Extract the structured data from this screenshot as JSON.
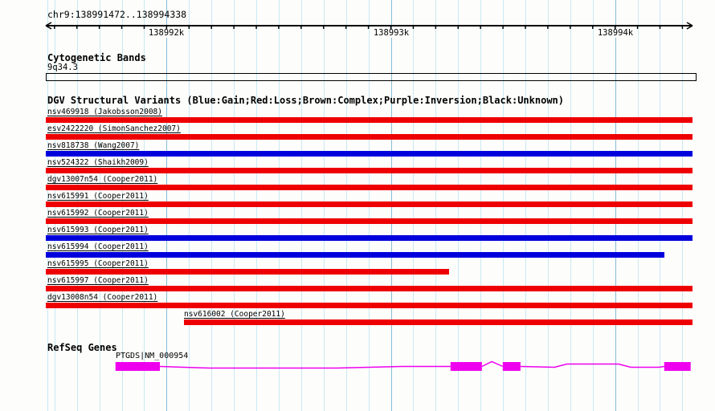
{
  "header": {
    "position_label": "chr9:138991472..138994338"
  },
  "chart_data": {
    "type": "genome-browser",
    "view": {
      "chrom": "chr9",
      "start": 138991472,
      "end": 138994338
    },
    "ruler": {
      "minor_tick_bp": 100,
      "major_ticks": [
        {
          "bp": 138992000,
          "label": "138992k"
        },
        {
          "bp": 138993000,
          "label": "138993k"
        },
        {
          "bp": 138994000,
          "label": "138994k"
        }
      ]
    },
    "cytogenetic": {
      "title": "Cytogenetic Bands",
      "band_label": "9q34.3"
    },
    "dgv": {
      "title": "DGV Structural Variants (Blue:Gain;Red:Loss;Brown:Complex;Purple:Inversion;Black:Unknown)",
      "variants": [
        {
          "label": "nsv469918 (Jakobsson2008)",
          "color": "red",
          "start": null,
          "end": null
        },
        {
          "label": "esv2422220 (SimonSanchez2007)",
          "color": "red",
          "start": null,
          "end": null
        },
        {
          "label": "nsv818738 (Wang2007)",
          "color": "blue",
          "start": null,
          "end": null
        },
        {
          "label": "nsv524322 (Shaikh2009)",
          "color": "red",
          "start": null,
          "end": null
        },
        {
          "label": "dgv13007n54 (Cooper2011)",
          "color": "red",
          "start": null,
          "end": null
        },
        {
          "label": "nsv615991 (Cooper2011)",
          "color": "red",
          "start": null,
          "end": null
        },
        {
          "label": "nsv615992 (Cooper2011)",
          "color": "red",
          "start": null,
          "end": null
        },
        {
          "label": "nsv615993 (Cooper2011)",
          "color": "blue",
          "start": null,
          "end": null
        },
        {
          "label": "nsv615994 (Cooper2011)",
          "color": "blue",
          "start": null,
          "end": 138994220
        },
        {
          "label": "nsv615995 (Cooper2011)",
          "color": "red",
          "start": null,
          "end": 138993260
        },
        {
          "label": "nsv615997 (Cooper2011)",
          "color": "red",
          "start": null,
          "end": null
        },
        {
          "label": "dgv13008n54 (Cooper2011)",
          "color": "red",
          "start": null,
          "end": null
        },
        {
          "label": "nsv616002 (Cooper2011)",
          "color": "red",
          "start": 138992077,
          "end": null
        }
      ]
    },
    "refseq": {
      "title": "RefSeq Genes",
      "gene": {
        "label": "PTGDS|NM_000954",
        "exons": [
          [
            138991772,
            138991970
          ],
          [
            138993266,
            138993406
          ],
          [
            138993499,
            138993578
          ],
          [
            138994219,
            138994337
          ]
        ],
        "connectors": [
          [
            [
              138991970,
              0
            ],
            [
              138992190,
              2
            ],
            [
              138992760,
              2
            ],
            [
              138993050,
              0
            ],
            [
              138993266,
              0
            ]
          ],
          [
            [
              138993406,
              0
            ],
            [
              138993450,
              -6
            ],
            [
              138993499,
              0
            ]
          ],
          [
            [
              138993578,
              0
            ],
            [
              138993730,
              1
            ],
            [
              138993785,
              -3
            ],
            [
              138994015,
              -3
            ],
            [
              138994070,
              1
            ],
            [
              138994195,
              1
            ],
            [
              138994219,
              0
            ]
          ]
        ]
      }
    },
    "colors": {
      "loss_red": "#ee0000",
      "gain_blue": "#0000dd",
      "gene_magenta": "#ee00ee",
      "grid_light": "#c9e9f2",
      "grid_major": "#85bdd9",
      "ruler_black": "#000000"
    }
  }
}
